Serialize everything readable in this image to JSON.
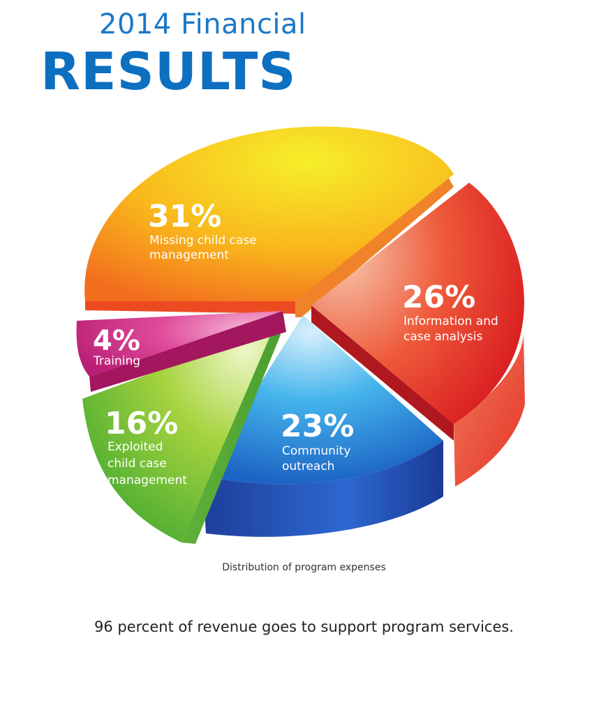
{
  "header": {
    "title_line1": "2014 Financial",
    "title_line2": "RESULTS"
  },
  "caption": "Distribution of program expenses",
  "footnote": "96 percent of revenue goes to support program services.",
  "colors": {
    "title": "#1a78c8",
    "missing": "#f7a51c",
    "information": "#e42a2a",
    "community": "#2a8ad8",
    "exploited": "#6cbf3a",
    "training": "#d02a84"
  },
  "chart_data": {
    "type": "pie",
    "title": "2014 Financial RESULTS",
    "slices": [
      {
        "label": "Missing child case management",
        "value": 31,
        "value_label": "31%",
        "color": "#f7a51c"
      },
      {
        "label": "Information and case analysis",
        "value": 26,
        "value_label": "26%",
        "color": "#e42a2a"
      },
      {
        "label": "Community outreach",
        "value": 23,
        "value_label": "23%",
        "color": "#2a8ad8"
      },
      {
        "label": "Exploited child case management",
        "value": 16,
        "value_label": "16%",
        "color": "#6cbf3a"
      },
      {
        "label": "Training",
        "value": 4,
        "value_label": "4%",
        "color": "#d02a84"
      }
    ],
    "label_lines": [
      [
        "Missing child case",
        "management"
      ],
      [
        "Information and",
        "case analysis"
      ],
      [
        "Community",
        "outreach"
      ],
      [
        "Exploited",
        "child case",
        "management"
      ],
      [
        "Training"
      ]
    ]
  }
}
